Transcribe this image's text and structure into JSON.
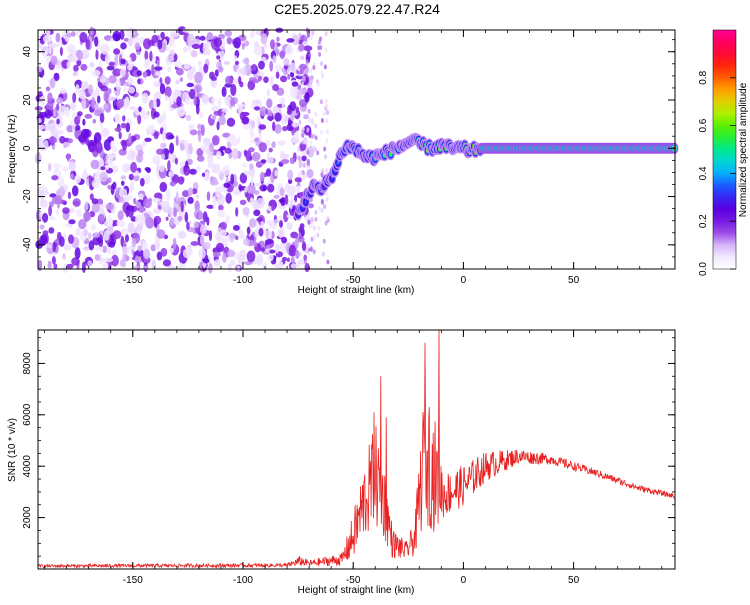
{
  "title": "C2E5.2025.079.22.47.R24",
  "chart_data": [
    {
      "type": "heatmap",
      "xlabel": "Height of straight line (km)",
      "ylabel": "Frequency (Hz)",
      "xlim": [
        -193,
        96
      ],
      "ylim": [
        -50,
        49
      ],
      "xticks": [
        -150,
        -100,
        -50,
        0,
        50
      ],
      "yticks": [
        -40,
        -20,
        0,
        20,
        40
      ],
      "colorbar": {
        "label": "Normalized spectral amplitude",
        "range": [
          0,
          1
        ],
        "ticks": [
          0.0,
          0.2,
          0.4,
          0.6,
          0.8
        ],
        "colors": [
          "#ffffff",
          "#ead9ff",
          "#8a2be2",
          "#5a00e0",
          "#2040ff",
          "#00c8ff",
          "#00e890",
          "#40f000",
          "#c8f000",
          "#ffa000",
          "#ff3000",
          "#ff0040",
          "#ff0090"
        ]
      },
      "noise_region": {
        "x_from": -193,
        "x_to": -73,
        "density": "high"
      },
      "ridge": [
        {
          "x": -75,
          "y": -27,
          "amp": 0.3
        },
        {
          "x": -72,
          "y": -22,
          "amp": 0.35
        },
        {
          "x": -68,
          "y": -15,
          "amp": 0.3
        },
        {
          "x": -65,
          "y": -18,
          "amp": 0.25
        },
        {
          "x": -62,
          "y": -14,
          "amp": 0.3
        },
        {
          "x": -58,
          "y": -9,
          "amp": 0.35
        },
        {
          "x": -55,
          "y": -1,
          "amp": 0.45
        },
        {
          "x": -52,
          "y": 1,
          "amp": 0.55
        },
        {
          "x": -48,
          "y": -1,
          "amp": 0.5
        },
        {
          "x": -45,
          "y": -3,
          "amp": 0.5
        },
        {
          "x": -42,
          "y": -4,
          "amp": 0.5
        },
        {
          "x": -38,
          "y": -3,
          "amp": 0.6
        },
        {
          "x": -33,
          "y": -1,
          "amp": 0.6
        },
        {
          "x": -28,
          "y": 1,
          "amp": 0.65
        },
        {
          "x": -24,
          "y": 3,
          "amp": 0.7
        },
        {
          "x": -20,
          "y": 2,
          "amp": 0.7
        },
        {
          "x": -15,
          "y": 0,
          "amp": 0.7
        },
        {
          "x": -10,
          "y": 1,
          "amp": 0.75
        },
        {
          "x": -5,
          "y": 0,
          "amp": 0.8
        },
        {
          "x": 0,
          "y": 0,
          "amp": 0.8
        },
        {
          "x": 3,
          "y": -1,
          "amp": 0.75
        },
        {
          "x": 8,
          "y": 0,
          "amp": 0.9
        },
        {
          "x": 96,
          "y": 0,
          "amp": 1.0
        }
      ]
    },
    {
      "type": "line",
      "xlabel": "Height of straight line (km)",
      "ylabel": "SNR (10 * v/v)",
      "xlim": [
        -193,
        96
      ],
      "ylim": [
        0,
        9300
      ],
      "xticks": [
        -150,
        -100,
        -50,
        0,
        50
      ],
      "yticks": [
        2000,
        4000,
        6000,
        8000
      ],
      "series": [
        {
          "color": "#e82020",
          "envelope": [
            {
              "x": -193,
              "base": 100,
              "amp": 120
            },
            {
              "x": -80,
              "base": 120,
              "amp": 150
            },
            {
              "x": -74,
              "base": 250,
              "amp": 400
            },
            {
              "x": -70,
              "base": 180,
              "amp": 250
            },
            {
              "x": -55,
              "base": 300,
              "amp": 500
            },
            {
              "x": -50,
              "base": 1000,
              "amp": 1800
            },
            {
              "x": -45,
              "base": 2200,
              "amp": 3000
            },
            {
              "x": -40,
              "base": 3000,
              "amp": 4200
            },
            {
              "x": -36,
              "base": 2200,
              "amp": 3000
            },
            {
              "x": -32,
              "base": 800,
              "amp": 1200
            },
            {
              "x": -26,
              "base": 600,
              "amp": 700
            },
            {
              "x": -22,
              "base": 1000,
              "amp": 1400
            },
            {
              "x": -18,
              "base": 3500,
              "amp": 5000
            },
            {
              "x": -13,
              "base": 3000,
              "amp": 4500
            },
            {
              "x": -9,
              "base": 2600,
              "amp": 1800
            },
            {
              "x": 0,
              "base": 3000,
              "amp": 1600
            },
            {
              "x": 10,
              "base": 3800,
              "amp": 1200
            },
            {
              "x": 25,
              "base": 4300,
              "amp": 600
            },
            {
              "x": 40,
              "base": 4200,
              "amp": 400
            },
            {
              "x": 60,
              "base": 3700,
              "amp": 300
            },
            {
              "x": 80,
              "base": 3100,
              "amp": 250
            },
            {
              "x": 96,
              "base": 2800,
              "amp": 200
            }
          ],
          "spikes": [
            {
              "x": -37.5,
              "y": 7500
            },
            {
              "x": -40.5,
              "y": 6100
            },
            {
              "x": -35,
              "y": 5900
            },
            {
              "x": -17.5,
              "y": 8800
            },
            {
              "x": -11,
              "y": 9300
            },
            {
              "x": -15.5,
              "y": 6300
            }
          ]
        }
      ]
    }
  ]
}
